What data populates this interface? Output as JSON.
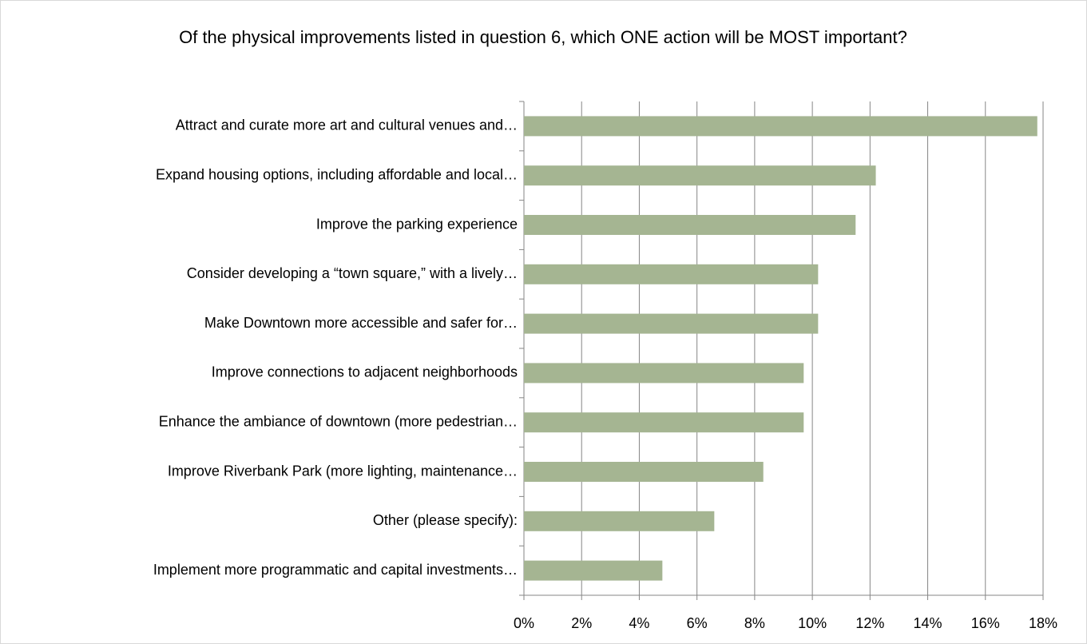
{
  "chart_data": {
    "type": "barh",
    "title": "Of the physical improvements listed in question 6, which ONE action will be MOST important?",
    "categories": [
      "Attract and curate more art and cultural venues and…",
      "Expand housing options, including affordable and local…",
      "Improve the parking experience",
      "Consider developing a “town square,” with a lively…",
      "Make Downtown more accessible and safer for…",
      "Improve connections to adjacent neighborhoods",
      "Enhance the ambiance of downtown (more pedestrian…",
      "Improve Riverbank Park (more lighting, maintenance…",
      "Other (please specify):",
      "Implement more programmatic and capital investments…"
    ],
    "values": [
      17.8,
      12.2,
      11.5,
      10.2,
      10.2,
      9.7,
      9.7,
      8.3,
      6.6,
      4.8
    ],
    "color": "#a5b592",
    "xlim": [
      0,
      18
    ],
    "xticks": [
      {
        "value": 0,
        "label": "0%"
      },
      {
        "value": 2,
        "label": "2%"
      },
      {
        "value": 4,
        "label": "4%"
      },
      {
        "value": 6,
        "label": "6%"
      },
      {
        "value": 8,
        "label": "8%"
      },
      {
        "value": 10,
        "label": "10%"
      },
      {
        "value": 12,
        "label": "12%"
      },
      {
        "value": 14,
        "label": "14%"
      },
      {
        "value": 16,
        "label": "16%"
      },
      {
        "value": 18,
        "label": "18%"
      }
    ],
    "grid": true
  }
}
